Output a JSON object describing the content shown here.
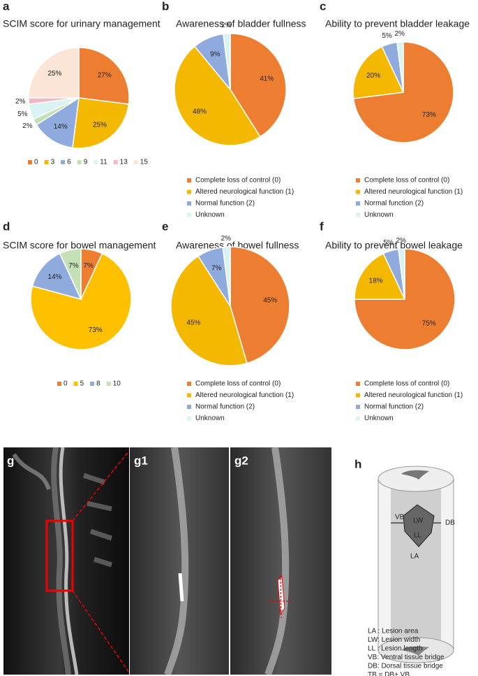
{
  "chart_data": [
    {
      "type": "pie",
      "panel": "a",
      "title": "SCIM score for urinary management",
      "legend": "horizontal",
      "categories": [
        "0",
        "3",
        "6",
        "9",
        "11",
        "13",
        "15"
      ],
      "values": [
        27,
        25,
        14,
        2,
        5,
        2,
        25
      ],
      "value_labels": [
        "27%",
        "25%",
        "14%",
        "2%",
        "5%",
        "2%",
        "25%"
      ],
      "colors": [
        "#ed7d31",
        "#f5b800",
        "#8faadc",
        "#c5e0b4",
        "#d9f2f2",
        "#f4b6c2",
        "#fbe5d6"
      ]
    },
    {
      "type": "pie",
      "panel": "b",
      "title": "Awareness of bladder fullness",
      "legend": "vertical",
      "categories": [
        "Complete loss of control (0)",
        "Altered neurological function (1)",
        "Normal function (2)",
        "Unknown"
      ],
      "values": [
        41,
        48,
        9,
        2
      ],
      "value_labels": [
        "41%",
        "48%",
        "9%",
        "2%"
      ],
      "colors": [
        "#ed7d31",
        "#f5b800",
        "#8faadc",
        "#d9f2f2"
      ]
    },
    {
      "type": "pie",
      "panel": "c",
      "title": "Ability to prevent bladder leakage",
      "legend": "vertical",
      "categories": [
        "Complete loss of control (0)",
        "Altered neurological function (1)",
        "Normal function (2)",
        "Unknown"
      ],
      "values": [
        73,
        20,
        5,
        2
      ],
      "value_labels": [
        "73%",
        "20%",
        "5%",
        "2%"
      ],
      "colors": [
        "#ed7d31",
        "#f5b800",
        "#8faadc",
        "#d9f2f2"
      ]
    },
    {
      "type": "pie",
      "panel": "d",
      "title": "SCIM score for bowel management",
      "legend": "horizontal",
      "categories": [
        "0",
        "5",
        "8",
        "10"
      ],
      "values": [
        7,
        73,
        14,
        7
      ],
      "value_labels": [
        "7%",
        "73%",
        "14%",
        "7%"
      ],
      "colors": [
        "#ed7d31",
        "#ffc000",
        "#8faadc",
        "#c5e0b4"
      ]
    },
    {
      "type": "pie",
      "panel": "e",
      "title": "Awareness of bowel fullness",
      "legend": "vertical",
      "categories": [
        "Complete loss of control (0)",
        "Altered neurological function (1)",
        "Normal function (2)",
        "Unknown"
      ],
      "values": [
        45,
        45,
        7,
        2
      ],
      "value_labels": [
        "45%",
        "45%",
        "7%",
        "2%"
      ],
      "colors": [
        "#ed7d31",
        "#f5b800",
        "#8faadc",
        "#d9f2f2"
      ]
    },
    {
      "type": "pie",
      "panel": "f",
      "title": "Ability to prevent bowel leakage",
      "legend": "vertical",
      "categories": [
        "Complete loss of control (0)",
        "Altered neurological function (1)",
        "Normal function (2)",
        "Unknown"
      ],
      "values": [
        75,
        18,
        5,
        2
      ],
      "value_labels": [
        "75%",
        "18%",
        "5%",
        "2%"
      ],
      "colors": [
        "#ed7d31",
        "#f5b800",
        "#8faadc",
        "#d9f2f2"
      ]
    }
  ],
  "images": {
    "g": "g",
    "g1": "g1",
    "g2": "g2"
  },
  "diagram": {
    "panel": "h",
    "labels": {
      "vb": "VB",
      "lw": "LW",
      "db": "DB",
      "ll": "LL",
      "la": "LA"
    },
    "legend": [
      "LA : Lesion area",
      "LW: Lesion width",
      "LL : Lesion length",
      "VB: Ventral tissue bridge",
      "DB: Dorsal tissue bridge",
      "TB = DB+ VB"
    ]
  }
}
